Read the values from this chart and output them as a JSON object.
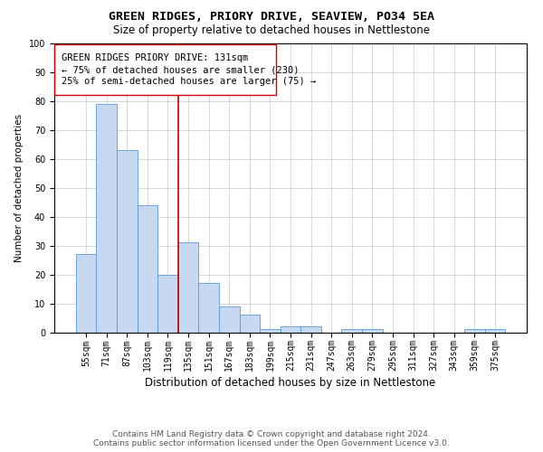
{
  "title1": "GREEN RIDGES, PRIORY DRIVE, SEAVIEW, PO34 5EA",
  "title2": "Size of property relative to detached houses in Nettlestone",
  "xlabel": "Distribution of detached houses by size in Nettlestone",
  "ylabel": "Number of detached properties",
  "categories": [
    "55sqm",
    "71sqm",
    "87sqm",
    "103sqm",
    "119sqm",
    "135sqm",
    "151sqm",
    "167sqm",
    "183sqm",
    "199sqm",
    "215sqm",
    "231sqm",
    "247sqm",
    "263sqm",
    "279sqm",
    "295sqm",
    "311sqm",
    "327sqm",
    "343sqm",
    "359sqm",
    "375sqm"
  ],
  "values": [
    27,
    79,
    63,
    44,
    20,
    31,
    17,
    9,
    6,
    1,
    2,
    2,
    0,
    1,
    1,
    0,
    0,
    0,
    0,
    1,
    1
  ],
  "bar_color": "#c6d9f0",
  "bar_edge_color": "#5b9bd5",
  "vline_color": "#c00000",
  "vline_x": 4.5,
  "annotation_text_line1": "GREEN RIDGES PRIORY DRIVE: 131sqm",
  "annotation_text_line2": "← 75% of detached houses are smaller (230)",
  "annotation_text_line3": "25% of semi-detached houses are larger (75) →",
  "ylim": [
    0,
    100
  ],
  "yticks": [
    0,
    10,
    20,
    30,
    40,
    50,
    60,
    70,
    80,
    90,
    100
  ],
  "footer1": "Contains HM Land Registry data © Crown copyright and database right 2024.",
  "footer2": "Contains public sector information licensed under the Open Government Licence v3.0.",
  "bg_color": "#ffffff",
  "grid_color": "#c8c8c8",
  "title1_fontsize": 9.5,
  "title2_fontsize": 8.5,
  "xlabel_fontsize": 8.5,
  "ylabel_fontsize": 7.5,
  "tick_fontsize": 7,
  "annot_fontsize": 7.5,
  "footer_fontsize": 6.5
}
